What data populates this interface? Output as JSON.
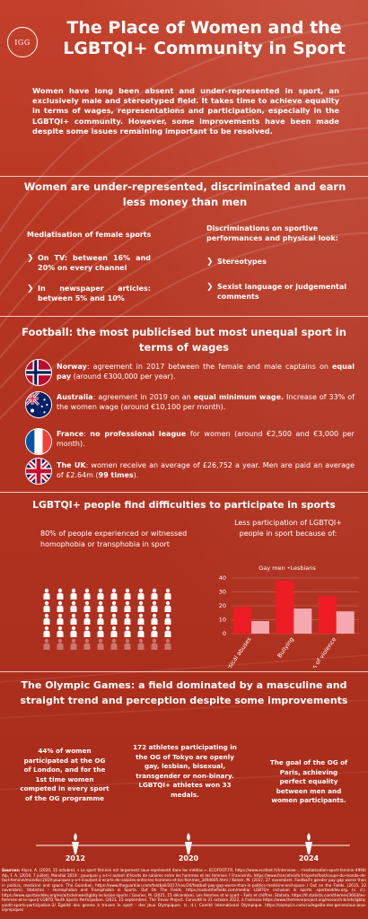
{
  "header": {
    "logo_text": "IGG",
    "title_line1": "The Place of Women and the",
    "title_line2": "LGBTQI+ Community in Sport",
    "intro": "Women have long been absent and under-represented in sport, an exclusively male and stereotyped field. It takes time to achieve equality in terms of wages, representations and participation, especially in the LGBTQI+ community. However, some improvements have been made despite some issues remaining important to be resolved."
  },
  "section1": {
    "title": "Women are under-represented, discriminated and earn less money than men",
    "left_heading": "Mediatisation of female sports",
    "left_items": [
      "On TV: between 16% and 20% on every channel",
      "In newspaper articles: between 5% and 10%"
    ],
    "right_heading": "Discriminations on sportive performances and physical look:",
    "right_items": [
      "Stereotypes",
      "Sexist language or judgemental comments"
    ]
  },
  "section2": {
    "title": "Football: the most publicised but most unequal sport in terms of wages",
    "countries": [
      {
        "flag": "norway-flag-icon",
        "name": "Norway",
        "text1": ": agreement in 2017 between the female and male captains on ",
        "bold2": "equal pay",
        "text2": " (around €300,000 per year)."
      },
      {
        "flag": "australia-flag-icon",
        "name": "Australia",
        "text1": ": agreement in 2019 on an ",
        "bold2": "equal minimum wage.",
        "text2": " Increase of 33% of the women wage (around €10,100 per month)."
      },
      {
        "flag": "france-flag-icon",
        "name": "France",
        "text1": ": ",
        "bold2": "no professional league",
        "text2": " for women (around €2,500 and €3,000 per month)."
      },
      {
        "flag": "uk-flag-icon",
        "name": "The UK",
        "text1": ": women receive an average of £26,752 a year. Men are paid an average of £2.64m (",
        "bold2": "99 times",
        "text2": ")."
      }
    ]
  },
  "section3": {
    "title": "LGBTQI+ people find difficulties to participate in sports",
    "left_text": "80% of people experienced or witnessed homophobia or transphobia in sport",
    "right_text": "Less participation of LGBTQI+ people in sport because of:",
    "people_icon": "person-icon",
    "people_total": 50,
    "people_highlight": 40
  },
  "chart_data": {
    "type": "bar",
    "categories": [
      "Physical abuses",
      "Bullying",
      "Threats of violence"
    ],
    "series": [
      {
        "name": "Gay men",
        "color": "#ee1c25",
        "values": [
          19,
          38,
          27
        ]
      },
      {
        "name": "Lesbians",
        "color": "#f4a9b0",
        "values": [
          9,
          18,
          16
        ]
      }
    ],
    "legend_text": "Gay men  •Lesbians",
    "yticks": [
      "0",
      "10",
      "20",
      "30",
      "40"
    ],
    "ylim": [
      0,
      40
    ],
    "grid": true
  },
  "section4": {
    "title": "The Olympic Games: a field dominated by a masculine and straight trend and perception despite some improvements",
    "columns": [
      {
        "text": "44% of women participated at the OG of London, and for the 1st time women competed in every sport of the OG programme",
        "year": "2012"
      },
      {
        "text": "172 athletes participating in the OG of Tokyo are openly gay, lesbian, bisexual, transgender or non-binary. LGBTQI+ athletes won 33 medals.",
        "year": "2020"
      },
      {
        "text": "The goal of the OG of Paris, achieving perfect equality between men and women participants.",
        "year": "2024"
      }
    ]
  },
  "sources": {
    "label": "Sources:",
    "text": "Alyce, A. (2020, 15 octobre). « Le sport féminin est largement sous-représenté dans les médias ». ECOFOOT.FR. https://www.ecofoot.fr/interview-...-mediatisation-sport-feminin-4994/ Alp, F. A. (2019, 7 juillet). Mondial 2019 : pourquoi y a-t-il autant d'écarts de salaires entre les hommes et les femmes ? Franceinfo. https://www.francetvinfo.fr/sports/foot/coupe-du-monde-de-foot-feminin/mondial-2019-pourquoi-y-a-t-il-autant-d-ecarts-de-salaires-entre-les-hommes-et-les-femmes_3494605.html / Kelner, M. (2017, 27 novembre). Football's gender pay gap worse than in politics, medicine and space. The Guardian. https://www.theguardian.com/football/2017/nov/26/football-pay-gap-worse-than-in-politics-medicine-and-space / Out on the Fields. (2015, 22 novembre). Statistics – Homophobia and Transphobia in Sports. Out On The Fields. https://outonthefields.com/media/ LGBTQ+ inclusion in sports. sportanddev.org. (s. d.). https://www.sportanddev.org/en/article/news/lgbtq-inclusion-sports / Gourier, M. (2021, 15 décembre). Les femmes et le sport – Faits et chiffres. Statista. https://fr.statista.com/themes/3603/les-femmes-et-le-sport/ LGBTQ Youth Sports Participation. (2021, 15 septembre). The Trevor Project. Consulté le 21 octobre 2022, à l'adresse https://www.thetrevorproject.org/research-briefs/lgbtq-youth-sports-participation-2/ Égalité des genres à travers le sport : des Jeux Olympiques. (s. d.). Comité International Olympique. https://olympics.com/cio/egalite-des-genres/aux-jeux-olympiques"
  }
}
